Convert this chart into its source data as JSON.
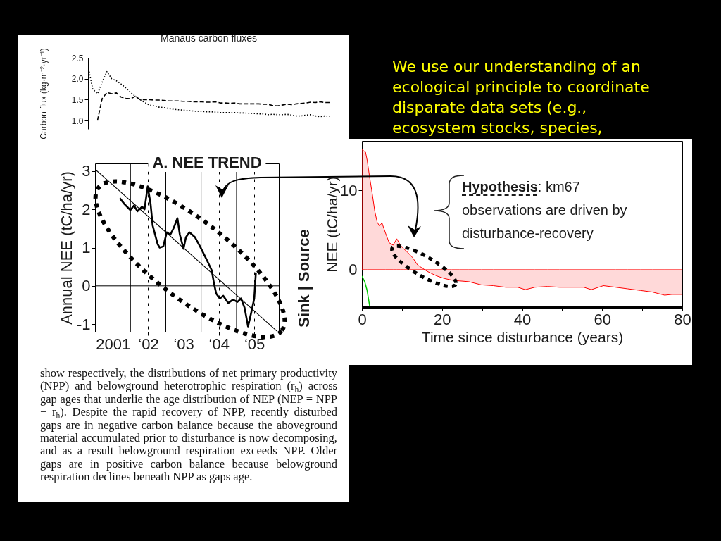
{
  "chart_data": [
    {
      "type": "line",
      "title": "Manaus carbon fluxes",
      "ylabel": "Carbon flux (kg·m⁻²·yr⁻¹)",
      "tick_labels": "y",
      "categories": [
        null,
        null,
        null,
        null,
        null,
        null,
        null,
        null,
        null,
        null,
        null,
        null,
        null,
        null,
        null,
        null,
        null,
        null,
        null,
        null,
        null,
        null,
        null,
        null,
        null,
        null,
        null,
        null,
        null,
        null,
        null,
        null,
        null,
        null,
        null,
        null,
        null,
        null,
        null,
        null,
        null,
        null,
        null,
        null,
        null,
        null,
        null,
        null,
        null,
        null,
        null,
        null
      ],
      "series": [
        {
          "color": "#000000",
          "line_style": "dotted",
          "values": [
            2.3,
            1.75,
            1.64,
            1.92,
            2.17,
            2.0,
            1.95,
            1.87,
            1.78,
            1.67,
            1.58,
            1.5,
            1.43,
            1.37,
            1.35,
            1.32,
            1.31,
            1.29,
            1.27,
            1.26,
            1.25,
            1.24,
            1.23,
            1.22,
            1.22,
            1.21,
            1.21,
            1.2,
            1.19,
            1.19,
            1.19,
            1.19,
            1.18,
            1.18,
            1.17,
            1.17,
            1.16,
            1.16,
            1.14,
            1.15,
            1.14,
            1.14,
            1.15,
            1.13,
            1.11,
            1.11,
            1.13,
            1.14,
            1.11,
            1.09,
            1.11,
            1.1
          ]
        },
        {
          "color": "#000000",
          "line_style": "dashed",
          "values": [
            null,
            null,
            1.0,
            1.53,
            1.67,
            1.64,
            1.66,
            1.56,
            1.53,
            1.52,
            1.58,
            1.5,
            1.5,
            1.5,
            1.49,
            1.49,
            1.48,
            1.47,
            1.47,
            1.47,
            1.46,
            1.46,
            1.45,
            1.45,
            1.45,
            1.44,
            1.44,
            1.45,
            1.42,
            1.42,
            1.41,
            1.42,
            1.4,
            1.4,
            1.4,
            1.4,
            1.4,
            1.39,
            1.39,
            1.36,
            1.35,
            1.37,
            1.39,
            1.38,
            1.4,
            1.41,
            1.42,
            1.44,
            1.43,
            1.45,
            1.43,
            1.43
          ]
        }
      ],
      "ylim": [
        0.8,
        2.5
      ],
      "yticks": [
        {
          "value": 1,
          "label": "1.0"
        },
        1.5,
        {
          "value": 2,
          "label": "2.0"
        },
        2.5
      ],
      "annotations": [
        "show respectively, the distributions of net primary productivity (NPP) and belowground heterotrophic respiration (r$_{h}$) across gap ages that underlie the age distribution of NEP (NEP = NPP − r$_{h}$). Despite the rapid recovery of NPP, recently disturbed gaps are in negative carbon balance because the aboveground material accumulated prior to disturbance is now decomposing, and as a result belowground respiration exceeds NPP. Older gaps are in positive carbon balance because belowground respiration declines beneath NPP as gaps age."
      ]
    },
    {
      "type": "line",
      "title": "A. NEE TREND",
      "ylabel": "Annual NEE (tC/ha/yr)",
      "series": [
        {
          "color": "#000000",
          "x": [
            "2001-03-14",
            "2001-04-30",
            "2001-07-01",
            "2001-08-07",
            "2001-09-12",
            "2001-10-30",
            "2001-11-24",
            "2001-12-27",
            "2002-01-26",
            "2002-02-16",
            "2002-04-09",
            "2002-04-30",
            "2002-06-06",
            "2002-07-12",
            "2002-08-18",
            "2002-09-23",
            "2002-10-30",
            "2002-11-24",
            "2003-01-01",
            "2003-01-26",
            "2003-03-03",
            "2003-04-30",
            "2003-06-21",
            "2003-09-02",
            "2003-10-19",
            "2003-11-14",
            "2003-12-05",
            "2004-01-11",
            "2004-02-16",
            "2004-04-08",
            "2004-05-26",
            "2004-07-11",
            "2004-08-17",
            "2004-09-23",
            "2004-10-29",
            "2004-12-01",
            "2005-01-01",
            "2005-01-18"
          ],
          "values": [
            2.29,
            2.14,
            1.98,
            2.1,
            1.95,
            2.07,
            2.0,
            2.6,
            2.14,
            1.58,
            1.09,
            1.0,
            1.03,
            1.4,
            1.34,
            1.52,
            1.77,
            1.34,
            0.97,
            1.27,
            1.4,
            1.27,
            1.03,
            0.66,
            0.41,
            0.04,
            -0.2,
            -0.33,
            -0.26,
            -0.45,
            -0.36,
            -0.42,
            -0.33,
            -0.57,
            -1.06,
            -0.7,
            -0.33,
            0.35
          ]
        },
        {
          "type": "line",
          "color": "#000000",
          "x": [
            "2000-07-01",
            "2005-08-22"
          ],
          "values": [
            3.05,
            -1.18
          ]
        }
      ],
      "xlim": [
        "2000-07-01",
        "2005-09-12"
      ],
      "xticks": [
        {
          "value": "2001",
          "label": "2001"
        },
        {
          "value": "2002",
          "label": "‘02"
        },
        {
          "value": "2003",
          "label": "‘03"
        },
        {
          "value": "2004",
          "label": "‘04"
        },
        {
          "value": "2005",
          "label": "‘05"
        }
      ],
      "ylim": [
        -1.2,
        3.2
      ],
      "yticks": [
        -1,
        0,
        1,
        2,
        3
      ],
      "grid": "x",
      "ref_lines": [
        {
          "axis": "x",
          "value": "2001-07-02"
        },
        {
          "axis": "x",
          "value": "2002-07-02"
        },
        {
          "axis": "x",
          "value": "2003-07-02"
        },
        {
          "axis": "x",
          "value": "2004-07-02"
        },
        {
          "axis": "y",
          "value": 0
        }
      ],
      "annotations": [
        "Sink | Source"
      ]
    },
    {
      "type": "line",
      "xlabel": "Time since disturbance (years)",
      "ylabel": "NEE (tC/ha/yr)",
      "series": [
        {
          "type": "area",
          "color": "#ff0000",
          "x": [
            0,
            0.9,
            1.3,
            2.0,
            2.6,
            3.2,
            3.8,
            4.4,
            5.0,
            5.9,
            6.8,
            7.8,
            8.7,
            9.6,
            10.5,
            11.4,
            12.7,
            13.9,
            15.1,
            16.3,
            17.5,
            18.8,
            20.6,
            22.4,
            24.3,
            26.7,
            29.8,
            32.8,
            35.9,
            38.9,
            40.8,
            43.2,
            46.3,
            49.3,
            52.4,
            55.4,
            57.3,
            60.3,
            63.4,
            66.4,
            69.5,
            72.5,
            75.6,
            77.4,
            80
          ],
          "values": [
            15.1,
            14.8,
            13.8,
            11.4,
            9.5,
            7.4,
            6.0,
            5.5,
            5.9,
            4.6,
            3.4,
            3.1,
            3.9,
            3.1,
            2.6,
            2.2,
            1.5,
            0.6,
            0.2,
            -0.2,
            -0.5,
            -0.8,
            -1.1,
            -1.3,
            -1.4,
            -1.5,
            -1.9,
            -2.0,
            -2.2,
            -2.2,
            -2.5,
            -2.2,
            -2.1,
            -2.2,
            -2.2,
            -2.2,
            -2.5,
            -2.0,
            -2.2,
            -2.4,
            -2.6,
            -2.8,
            -3.2,
            -3.1,
            -3.1
          ]
        },
        {
          "type": "line",
          "color": "#00cc00",
          "x": [
            0,
            0.7,
            1.3,
            1.95
          ],
          "values": [
            -0.8,
            -1.5,
            -2.6,
            -4.6
          ]
        }
      ],
      "xlim": [
        0,
        80
      ],
      "xticks": [
        0,
        {
          "value": 10,
          "label": null
        },
        20,
        {
          "value": 30,
          "label": null
        },
        40,
        {
          "value": 50,
          "label": null
        },
        60,
        {
          "value": 70,
          "label": null
        },
        80
      ],
      "ylim": [
        -4.7,
        16.2
      ],
      "yticks": [
        0,
        {
          "value": 5,
          "label": null
        },
        10,
        {
          "value": 15,
          "label": null
        }
      ],
      "annotations": [
        "Hypothesis: km67 observations are driven by disturbance-recovery"
      ]
    },
    {
      "type": "other",
      "annotations": [
        "We use our understanding of an ecological principle to coordinate disparate data sets (e.g., ecosystem stocks, species,"
      ]
    }
  ]
}
